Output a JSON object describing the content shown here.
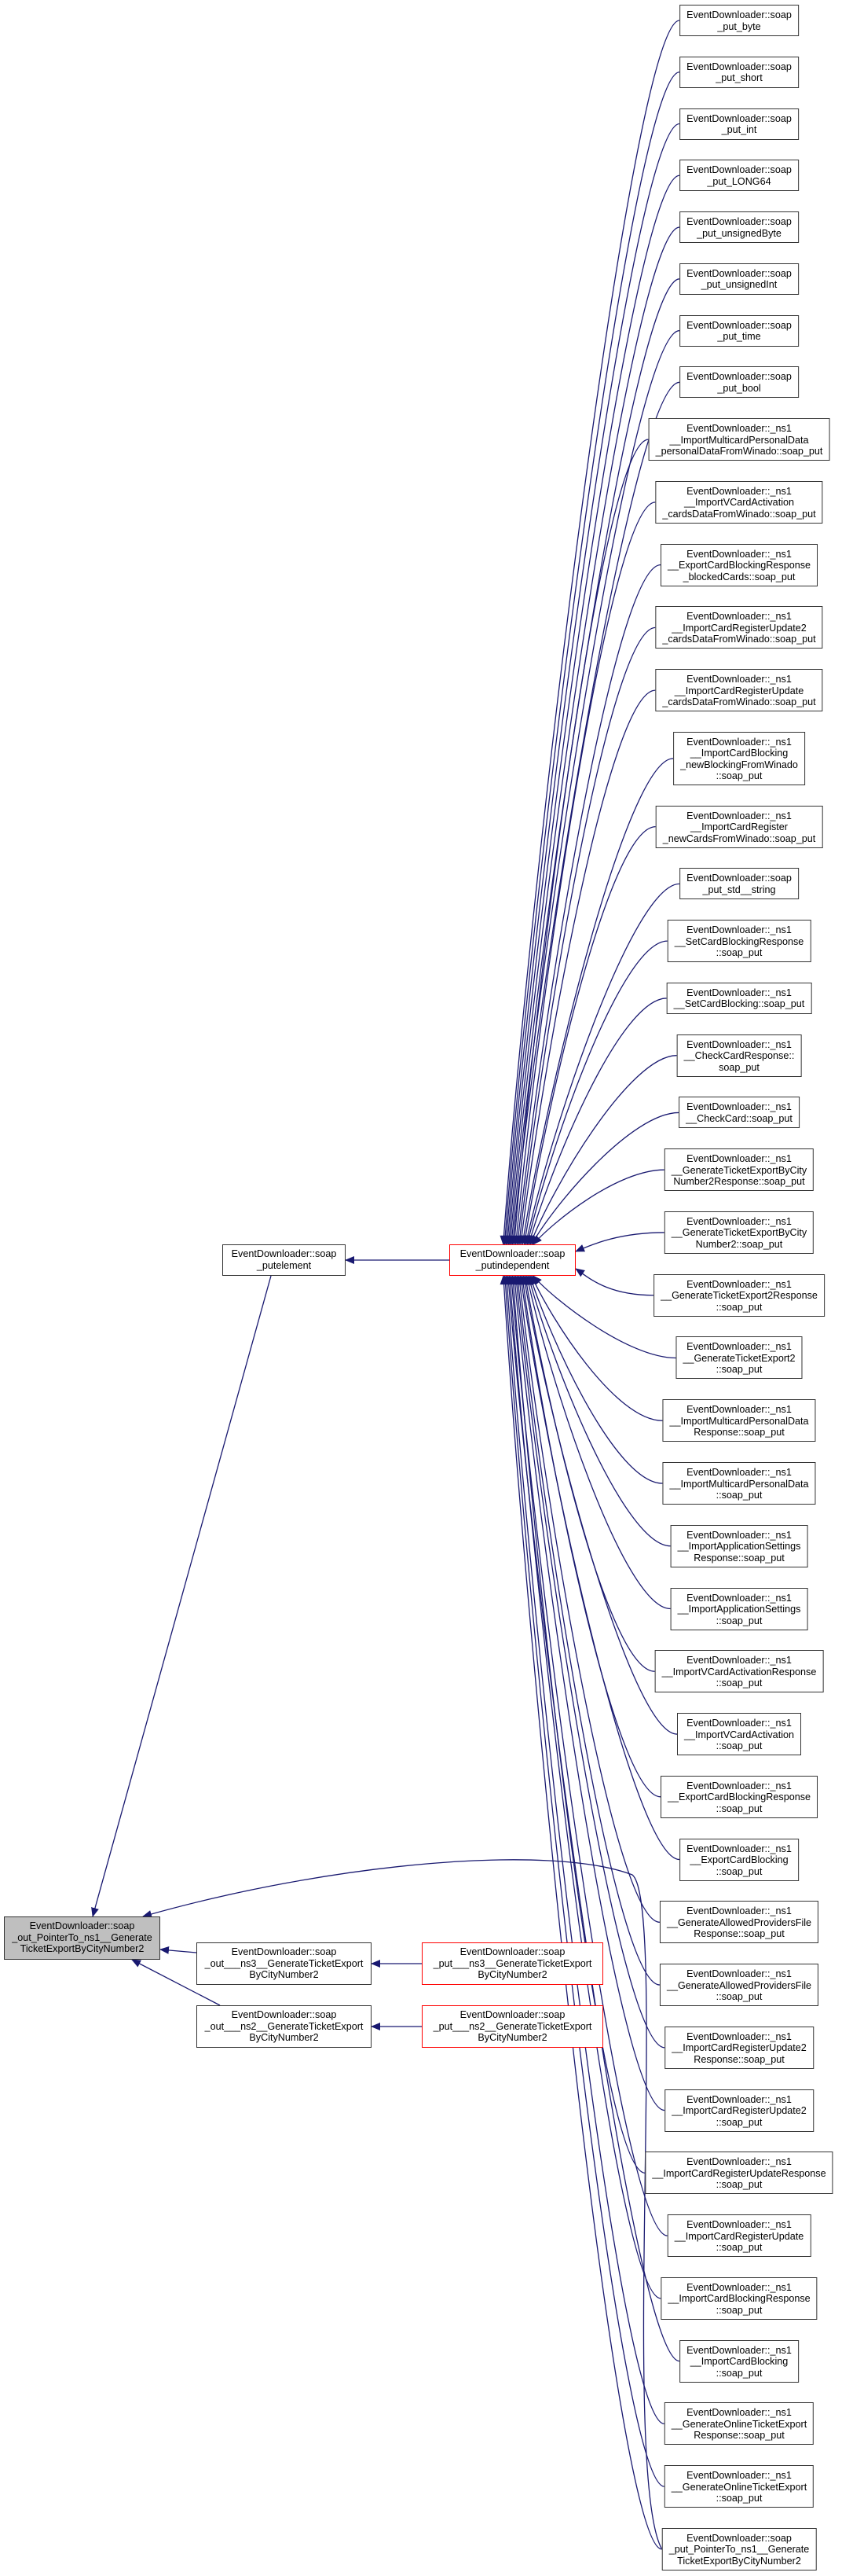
{
  "colors": {
    "edge": "#191970",
    "root_fill": "#bfbfbf",
    "truncated_border": "#ff0000",
    "node_border": "#333333"
  },
  "left_nodes": {
    "root": {
      "lines": [
        "EventDownloader::soap",
        "_out_PointerTo_ns1__Generate",
        "TicketExportByCityNumber2"
      ]
    },
    "putelement": {
      "lines": [
        "EventDownloader::soap",
        "_putelement"
      ]
    },
    "putindependent": {
      "lines": [
        "EventDownloader::soap",
        "_putindependent"
      ]
    },
    "out_ns3": {
      "lines": [
        "EventDownloader::soap",
        "_out___ns3__GenerateTicketExport",
        "ByCityNumber2"
      ]
    },
    "out_ns2": {
      "lines": [
        "EventDownloader::soap",
        "_out___ns2__GenerateTicketExport",
        "ByCityNumber2"
      ]
    },
    "put_ns3": {
      "lines": [
        "EventDownloader::soap",
        "_put___ns3__GenerateTicketExport",
        "ByCityNumber2"
      ]
    },
    "put_ns2": {
      "lines": [
        "EventDownloader::soap",
        "_put___ns2__GenerateTicketExport",
        "ByCityNumber2"
      ]
    }
  },
  "right_nodes": [
    {
      "lines": [
        "EventDownloader::soap",
        "_put_byte"
      ]
    },
    {
      "lines": [
        "EventDownloader::soap",
        "_put_short"
      ]
    },
    {
      "lines": [
        "EventDownloader::soap",
        "_put_int"
      ]
    },
    {
      "lines": [
        "EventDownloader::soap",
        "_put_LONG64"
      ]
    },
    {
      "lines": [
        "EventDownloader::soap",
        "_put_unsignedByte"
      ]
    },
    {
      "lines": [
        "EventDownloader::soap",
        "_put_unsignedInt"
      ]
    },
    {
      "lines": [
        "EventDownloader::soap",
        "_put_time"
      ]
    },
    {
      "lines": [
        "EventDownloader::soap",
        "_put_bool"
      ]
    },
    {
      "lines": [
        "EventDownloader::_ns1",
        "__ImportMulticardPersonalData",
        "_personalDataFromWinado::soap_put"
      ]
    },
    {
      "lines": [
        "EventDownloader::_ns1",
        "__ImportVCardActivation",
        "_cardsDataFromWinado::soap_put"
      ]
    },
    {
      "lines": [
        "EventDownloader::_ns1",
        "__ExportCardBlockingResponse",
        "_blockedCards::soap_put"
      ]
    },
    {
      "lines": [
        "EventDownloader::_ns1",
        "__ImportCardRegisterUpdate2",
        "_cardsDataFromWinado::soap_put"
      ]
    },
    {
      "lines": [
        "EventDownloader::_ns1",
        "__ImportCardRegisterUpdate",
        "_cardsDataFromWinado::soap_put"
      ]
    },
    {
      "lines": [
        "EventDownloader::_ns1",
        "__ImportCardBlocking",
        "_newBlockingFromWinado",
        "::soap_put"
      ]
    },
    {
      "lines": [
        "EventDownloader::_ns1",
        "__ImportCardRegister",
        "_newCardsFromWinado::soap_put"
      ]
    },
    {
      "lines": [
        "EventDownloader::soap",
        "_put_std__string"
      ]
    },
    {
      "lines": [
        "EventDownloader::_ns1",
        "__SetCardBlockingResponse",
        "::soap_put"
      ]
    },
    {
      "lines": [
        "EventDownloader::_ns1",
        "__SetCardBlocking::soap_put"
      ]
    },
    {
      "lines": [
        "EventDownloader::_ns1",
        "__CheckCardResponse::",
        "soap_put"
      ]
    },
    {
      "lines": [
        "EventDownloader::_ns1",
        "__CheckCard::soap_put"
      ]
    },
    {
      "lines": [
        "EventDownloader::_ns1",
        "__GenerateTicketExportByCity",
        "Number2Response::soap_put"
      ]
    },
    {
      "lines": [
        "EventDownloader::_ns1",
        "__GenerateTicketExportByCity",
        "Number2::soap_put"
      ]
    },
    {
      "lines": [
        "EventDownloader::_ns1",
        "__GenerateTicketExport2Response",
        "::soap_put"
      ]
    },
    {
      "lines": [
        "EventDownloader::_ns1",
        "__GenerateTicketExport2",
        "::soap_put"
      ]
    },
    {
      "lines": [
        "EventDownloader::_ns1",
        "__ImportMulticardPersonalData",
        "Response::soap_put"
      ]
    },
    {
      "lines": [
        "EventDownloader::_ns1",
        "__ImportMulticardPersonalData",
        "::soap_put"
      ]
    },
    {
      "lines": [
        "EventDownloader::_ns1",
        "__ImportApplicationSettings",
        "Response::soap_put"
      ]
    },
    {
      "lines": [
        "EventDownloader::_ns1",
        "__ImportApplicationSettings",
        "::soap_put"
      ]
    },
    {
      "lines": [
        "EventDownloader::_ns1",
        "__ImportVCardActivationResponse",
        "::soap_put"
      ]
    },
    {
      "lines": [
        "EventDownloader::_ns1",
        "__ImportVCardActivation",
        "::soap_put"
      ]
    },
    {
      "lines": [
        "EventDownloader::_ns1",
        "__ExportCardBlockingResponse",
        "::soap_put"
      ]
    },
    {
      "lines": [
        "EventDownloader::_ns1",
        "__ExportCardBlocking",
        "::soap_put"
      ]
    },
    {
      "lines": [
        "EventDownloader::_ns1",
        "__GenerateAllowedProvidersFile",
        "Response::soap_put"
      ]
    },
    {
      "lines": [
        "EventDownloader::_ns1",
        "__GenerateAllowedProvidersFile",
        "::soap_put"
      ]
    },
    {
      "lines": [
        "EventDownloader::_ns1",
        "__ImportCardRegisterUpdate2",
        "Response::soap_put"
      ]
    },
    {
      "lines": [
        "EventDownloader::_ns1",
        "__ImportCardRegisterUpdate2",
        "::soap_put"
      ]
    },
    {
      "lines": [
        "EventDownloader::_ns1",
        "__ImportCardRegisterUpdateResponse",
        "::soap_put"
      ]
    },
    {
      "lines": [
        "EventDownloader::_ns1",
        "__ImportCardRegisterUpdate",
        "::soap_put"
      ]
    },
    {
      "lines": [
        "EventDownloader::_ns1",
        "__ImportCardBlockingResponse",
        "::soap_put"
      ]
    },
    {
      "lines": [
        "EventDownloader::_ns1",
        "__ImportCardBlocking",
        "::soap_put"
      ]
    },
    {
      "lines": [
        "EventDownloader::_ns1",
        "__GenerateOnlineTicketExport",
        "Response::soap_put"
      ]
    },
    {
      "lines": [
        "EventDownloader::_ns1",
        "__GenerateOnlineTicketExport",
        "::soap_put"
      ]
    },
    {
      "lines": [
        "EventDownloader::soap",
        "_put_PointerTo_ns1__Generate",
        "TicketExportByCityNumber2"
      ]
    }
  ]
}
